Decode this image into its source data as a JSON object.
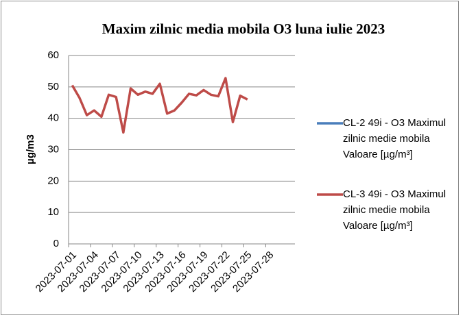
{
  "chart_data": {
    "type": "line",
    "title": "Maxim zilnic media mobila O3 luna iulie 2023",
    "y_label": "µg/m3",
    "categories": [
      "2023-07-01",
      null,
      null,
      "2023-07-04",
      null,
      null,
      "2023-07-07",
      null,
      null,
      "2023-07-10",
      null,
      null,
      "2023-07-13",
      null,
      null,
      "2023-07-16",
      null,
      null,
      "2023-07-19",
      null,
      null,
      "2023-07-22",
      null,
      null,
      "2023-07-25",
      null,
      null,
      "2023-07-28",
      null,
      null,
      null
    ],
    "series": [
      {
        "name": "CL-2 49i - O3 Maximul zilnic medie mobila Valoare [µg/m³]",
        "color": "#4a7ebb",
        "values": [
          null,
          null,
          null,
          null,
          null,
          null,
          null,
          null,
          null,
          null,
          null,
          null,
          null,
          null,
          null,
          null,
          null,
          null,
          null,
          null,
          null,
          null,
          null,
          null,
          null,
          null,
          null,
          null,
          null,
          null,
          null
        ]
      },
      {
        "name": "CL-3 49i - O3 Maximul zilnic medie mobila Valoare [µg/m³]",
        "color": "#be4b48",
        "values": [
          50.5,
          46.5,
          41,
          42.5,
          40.5,
          47.5,
          46.8,
          35.5,
          49.5,
          47.5,
          48.5,
          47.8,
          51,
          41.5,
          42.5,
          45,
          47.8,
          47.3,
          49,
          47.5,
          47,
          52.8,
          38.8,
          47.2,
          46,
          null,
          null,
          null,
          null,
          null,
          null
        ]
      }
    ],
    "ylim": [
      0,
      60
    ],
    "yticks": [
      0,
      10,
      20,
      30,
      40,
      50,
      60
    ],
    "grid": true,
    "legend": "right"
  }
}
